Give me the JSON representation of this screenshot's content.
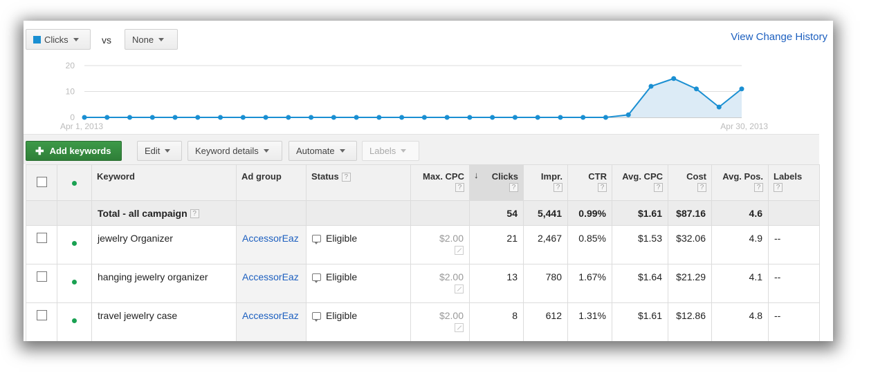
{
  "controls": {
    "metric1": "Clicks",
    "vs": "vs",
    "metric2": "None",
    "view_change_history": "View Change History"
  },
  "chart_data": {
    "type": "area",
    "y_ticks": [
      "20",
      "10",
      "0"
    ],
    "ylim": [
      0,
      20
    ],
    "x_start_label": "Apr 1, 2013",
    "x_end_label": "Apr 30, 2013",
    "values": [
      0,
      0,
      0,
      0,
      0,
      0,
      0,
      0,
      0,
      0,
      0,
      0,
      0,
      0,
      0,
      0,
      0,
      0,
      0,
      0,
      0,
      0,
      0,
      0,
      1,
      12,
      15,
      11,
      4,
      11
    ],
    "color": "#1a8fd2"
  },
  "toolbar": {
    "add_keywords": "Add keywords",
    "edit": "Edit",
    "keyword_details": "Keyword details",
    "automate": "Automate",
    "labels": "Labels"
  },
  "columns": {
    "keyword": "Keyword",
    "ad_group": "Ad group",
    "status": "Status",
    "max_cpc": "Max. CPC",
    "clicks": "Clicks",
    "impr": "Impr.",
    "ctr": "CTR",
    "avg_cpc": "Avg. CPC",
    "cost": "Cost",
    "avg_pos": "Avg. Pos.",
    "labels": "Labels",
    "help": "?"
  },
  "total": {
    "label": "Total - all campaign",
    "clicks": "54",
    "impr": "5,441",
    "ctr": "0.99%",
    "avg_cpc": "$1.61",
    "cost": "$87.16",
    "avg_pos": "4.6"
  },
  "rows": [
    {
      "keyword": "jewelry Organizer",
      "ad_group": "AccessorEaz",
      "status": "Eligible",
      "max_cpc": "$2.00",
      "clicks": "21",
      "impr": "2,467",
      "ctr": "0.85%",
      "avg_cpc": "$1.53",
      "cost": "$32.06",
      "avg_pos": "4.9",
      "labels": "--"
    },
    {
      "keyword": "hanging jewelry organizer",
      "ad_group": "AccessorEaz",
      "status": "Eligible",
      "max_cpc": "$2.00",
      "clicks": "13",
      "impr": "780",
      "ctr": "1.67%",
      "avg_cpc": "$1.64",
      "cost": "$21.29",
      "avg_pos": "4.1",
      "labels": "--"
    },
    {
      "keyword": "travel jewelry case",
      "ad_group": "AccessorEaz",
      "status": "Eligible",
      "max_cpc": "$2.00",
      "clicks": "8",
      "impr": "612",
      "ctr": "1.31%",
      "avg_cpc": "$1.61",
      "cost": "$12.86",
      "avg_pos": "4.8",
      "labels": "--"
    }
  ]
}
